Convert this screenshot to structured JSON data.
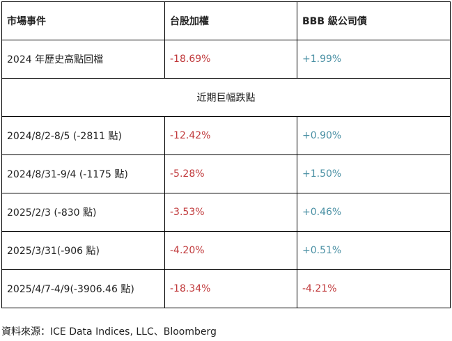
{
  "table": {
    "headers": [
      "市場事件",
      "台股加權",
      "BBB 級公司債"
    ],
    "first_row": {
      "event": "2024 年歷史高點回檔",
      "taiex": "-18.69%",
      "bbb": "+1.99%"
    },
    "section_label": "近期巨幅跌點",
    "rows": [
      {
        "event": "2024/8/2-8/5 (-2811 點)",
        "taiex": "-12.42%",
        "bbb": "+0.90%"
      },
      {
        "event": "2024/8/31-9/4 (-1175 點)",
        "taiex": "-5.28%",
        "bbb": "+1.50%"
      },
      {
        "event": "2025/2/3 (-830 點)",
        "taiex": "-3.53%",
        "bbb": "+0.46%"
      },
      {
        "event": "2025/3/31(-906 點)",
        "taiex": "-4.20%",
        "bbb": "+0.51%"
      },
      {
        "event": "2025/4/7-4/9(-3906.46 點)",
        "taiex": "-18.34%",
        "bbb": "-4.21%"
      }
    ]
  },
  "source": "資料來源：ICE Data Indices, LLC、Bloomberg",
  "colors": {
    "negative": "#c0393b",
    "positive": "#4a90a4",
    "border": "#000000"
  }
}
